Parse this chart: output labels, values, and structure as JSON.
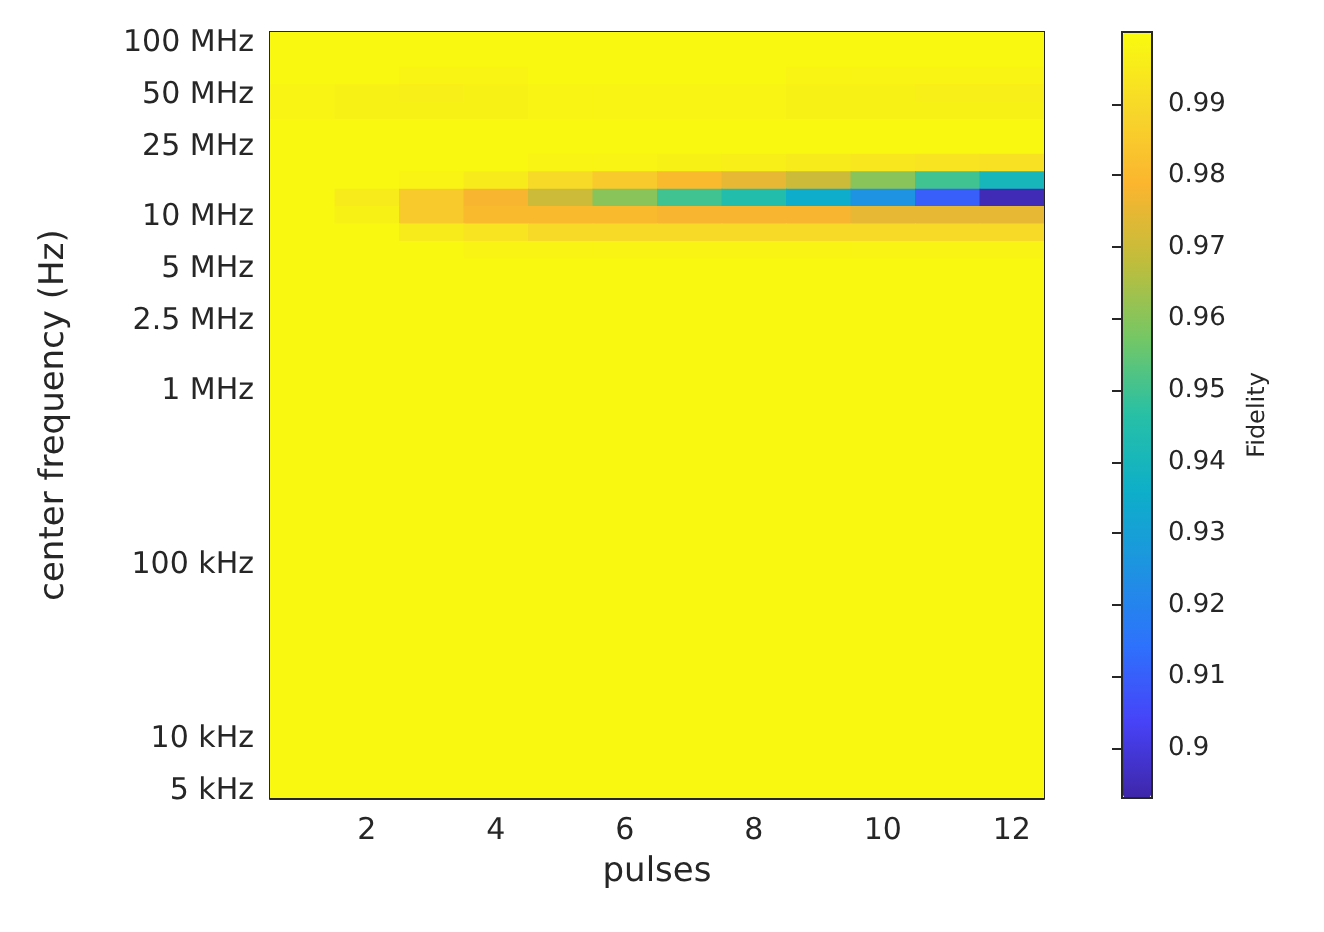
{
  "chart_data": {
    "type": "heatmap",
    "xlabel": "pulses",
    "ylabel": "center frequency (Hz)",
    "clabel": "Fidelity",
    "clim": [
      0.893,
      1
    ],
    "cticks": [
      0.9,
      0.91,
      0.92,
      0.93,
      0.94,
      0.95,
      0.96,
      0.97,
      0.98,
      0.99
    ],
    "categories": [
      null,
      "2",
      null,
      "4",
      null,
      "6",
      null,
      "8",
      null,
      "10",
      null,
      "12"
    ],
    "y_categories": [
      "100 MHz",
      null,
      null,
      "50 MHz",
      null,
      null,
      "25 MHz",
      null,
      null,
      null,
      "10 MHz",
      null,
      null,
      "5 MHz",
      null,
      null,
      "2.5 MHz",
      null,
      null,
      null,
      "1 MHz",
      null,
      null,
      null,
      null,
      null,
      null,
      null,
      null,
      null,
      "100 kHz",
      null,
      null,
      null,
      null,
      null,
      null,
      null,
      null,
      null,
      "10 kHz",
      null,
      null,
      "5 kHz"
    ],
    "cells": [
      [
        0.999,
        0.999,
        0.999,
        0.999,
        0.999,
        0.999,
        0.999,
        0.999,
        0.999,
        0.999,
        0.999,
        0.999
      ],
      [
        0.999,
        0.999,
        0.999,
        0.999,
        0.999,
        0.999,
        0.999,
        0.999,
        0.999,
        0.999,
        0.999,
        0.999
      ],
      [
        0.999,
        0.999,
        0.998,
        0.998,
        0.999,
        0.999,
        0.999,
        0.999,
        0.998,
        0.998,
        0.998,
        0.998
      ],
      [
        0.998,
        0.997,
        0.996,
        0.997,
        0.998,
        0.998,
        0.998,
        0.998,
        0.997,
        0.997,
        0.996,
        0.996
      ],
      [
        0.998,
        0.997,
        0.997,
        0.997,
        0.998,
        0.998,
        0.998,
        0.998,
        0.997,
        0.997,
        0.997,
        0.997
      ],
      [
        0.999,
        0.999,
        0.999,
        0.999,
        0.999,
        0.999,
        0.999,
        0.999,
        0.999,
        0.999,
        0.999,
        0.999
      ],
      [
        0.999,
        0.999,
        0.999,
        0.999,
        0.999,
        0.999,
        0.999,
        0.999,
        0.999,
        0.999,
        0.999,
        0.999
      ],
      [
        0.999,
        0.999,
        0.999,
        0.999,
        0.998,
        0.998,
        0.997,
        0.996,
        0.995,
        0.994,
        0.993,
        0.992
      ],
      [
        0.999,
        0.999,
        0.998,
        0.995,
        0.99,
        0.985,
        0.98,
        0.975,
        0.97,
        0.96,
        0.95,
        0.94
      ],
      [
        0.999,
        0.995,
        0.985,
        0.978,
        0.97,
        0.96,
        0.95,
        0.945,
        0.935,
        0.925,
        0.91,
        0.895
      ],
      [
        0.999,
        0.997,
        0.985,
        0.98,
        0.98,
        0.98,
        0.978,
        0.978,
        0.978,
        0.975,
        0.975,
        0.975
      ],
      [
        0.999,
        0.999,
        0.995,
        0.993,
        0.99,
        0.99,
        0.99,
        0.99,
        0.99,
        0.99,
        0.99,
        0.99
      ],
      [
        0.999,
        0.999,
        0.999,
        0.998,
        0.998,
        0.998,
        0.998,
        0.998,
        0.998,
        0.998,
        0.998,
        0.998
      ],
      [
        0.999,
        0.999,
        0.999,
        0.999,
        0.999,
        0.999,
        0.999,
        0.999,
        0.999,
        0.999,
        0.999,
        0.999
      ],
      [
        0.999,
        0.999,
        0.999,
        0.999,
        0.999,
        0.999,
        0.999,
        0.999,
        0.999,
        0.999,
        0.999,
        0.999
      ],
      [
        0.999,
        0.999,
        0.999,
        0.999,
        0.999,
        0.999,
        0.999,
        0.999,
        0.999,
        0.999,
        0.999,
        0.999
      ],
      [
        0.999,
        0.999,
        0.999,
        0.999,
        0.999,
        0.999,
        0.999,
        0.999,
        0.999,
        0.999,
        0.999,
        0.999
      ],
      [
        0.999,
        0.999,
        0.999,
        0.999,
        0.999,
        0.999,
        0.999,
        0.999,
        0.999,
        0.999,
        0.999,
        0.999
      ],
      [
        0.999,
        0.999,
        0.999,
        0.999,
        0.999,
        0.999,
        0.999,
        0.999,
        0.999,
        0.999,
        0.999,
        0.999
      ],
      [
        0.999,
        0.999,
        0.999,
        0.999,
        0.999,
        0.999,
        0.999,
        0.999,
        0.999,
        0.999,
        0.999,
        0.999
      ],
      [
        0.999,
        0.999,
        0.999,
        0.999,
        0.999,
        0.999,
        0.999,
        0.999,
        0.999,
        0.999,
        0.999,
        0.999
      ],
      [
        0.999,
        0.999,
        0.999,
        0.999,
        0.999,
        0.999,
        0.999,
        0.999,
        0.999,
        0.999,
        0.999,
        0.999
      ],
      [
        0.999,
        0.999,
        0.999,
        0.999,
        0.999,
        0.999,
        0.999,
        0.999,
        0.999,
        0.999,
        0.999,
        0.999
      ],
      [
        0.999,
        0.999,
        0.999,
        0.999,
        0.999,
        0.999,
        0.999,
        0.999,
        0.999,
        0.999,
        0.999,
        0.999
      ],
      [
        0.999,
        0.999,
        0.999,
        0.999,
        0.999,
        0.999,
        0.999,
        0.999,
        0.999,
        0.999,
        0.999,
        0.999
      ],
      [
        0.999,
        0.999,
        0.999,
        0.999,
        0.999,
        0.999,
        0.999,
        0.999,
        0.999,
        0.999,
        0.999,
        0.999
      ],
      [
        0.999,
        0.999,
        0.999,
        0.999,
        0.999,
        0.999,
        0.999,
        0.999,
        0.999,
        0.999,
        0.999,
        0.999
      ],
      [
        0.999,
        0.999,
        0.999,
        0.999,
        0.999,
        0.999,
        0.999,
        0.999,
        0.999,
        0.999,
        0.999,
        0.999
      ],
      [
        0.999,
        0.999,
        0.999,
        0.999,
        0.999,
        0.999,
        0.999,
        0.999,
        0.999,
        0.999,
        0.999,
        0.999
      ],
      [
        0.999,
        0.999,
        0.999,
        0.999,
        0.999,
        0.999,
        0.999,
        0.999,
        0.999,
        0.999,
        0.999,
        0.999
      ],
      [
        0.999,
        0.999,
        0.999,
        0.999,
        0.999,
        0.999,
        0.999,
        0.999,
        0.999,
        0.999,
        0.999,
        0.999
      ],
      [
        0.999,
        0.999,
        0.999,
        0.999,
        0.999,
        0.999,
        0.999,
        0.999,
        0.999,
        0.999,
        0.999,
        0.999
      ],
      [
        0.999,
        0.999,
        0.999,
        0.999,
        0.999,
        0.999,
        0.999,
        0.999,
        0.999,
        0.999,
        0.999,
        0.999
      ],
      [
        0.999,
        0.999,
        0.999,
        0.999,
        0.999,
        0.999,
        0.999,
        0.999,
        0.999,
        0.999,
        0.999,
        0.999
      ],
      [
        0.999,
        0.999,
        0.999,
        0.999,
        0.999,
        0.999,
        0.999,
        0.999,
        0.999,
        0.999,
        0.999,
        0.999
      ],
      [
        0.999,
        0.999,
        0.999,
        0.999,
        0.999,
        0.999,
        0.999,
        0.999,
        0.999,
        0.999,
        0.999,
        0.999
      ],
      [
        0.999,
        0.999,
        0.999,
        0.999,
        0.999,
        0.999,
        0.999,
        0.999,
        0.999,
        0.999,
        0.999,
        0.999
      ],
      [
        0.999,
        0.999,
        0.999,
        0.999,
        0.999,
        0.999,
        0.999,
        0.999,
        0.999,
        0.999,
        0.999,
        0.999
      ],
      [
        0.999,
        0.999,
        0.999,
        0.999,
        0.999,
        0.999,
        0.999,
        0.999,
        0.999,
        0.999,
        0.999,
        0.999
      ],
      [
        0.999,
        0.999,
        0.999,
        0.999,
        0.999,
        0.999,
        0.999,
        0.999,
        0.999,
        0.999,
        0.999,
        0.999
      ],
      [
        0.999,
        0.999,
        0.999,
        0.999,
        0.999,
        0.999,
        0.999,
        0.999,
        0.999,
        0.999,
        0.999,
        0.999
      ],
      [
        0.999,
        0.999,
        0.999,
        0.999,
        0.999,
        0.999,
        0.999,
        0.999,
        0.999,
        0.999,
        0.999,
        0.999
      ],
      [
        0.999,
        0.999,
        0.999,
        0.999,
        0.999,
        0.999,
        0.999,
        0.999,
        0.999,
        0.999,
        0.999,
        0.999
      ],
      [
        0.999,
        0.999,
        0.999,
        0.999,
        0.999,
        0.999,
        0.999,
        0.999,
        0.999,
        0.999,
        0.999,
        0.999
      ]
    ]
  }
}
